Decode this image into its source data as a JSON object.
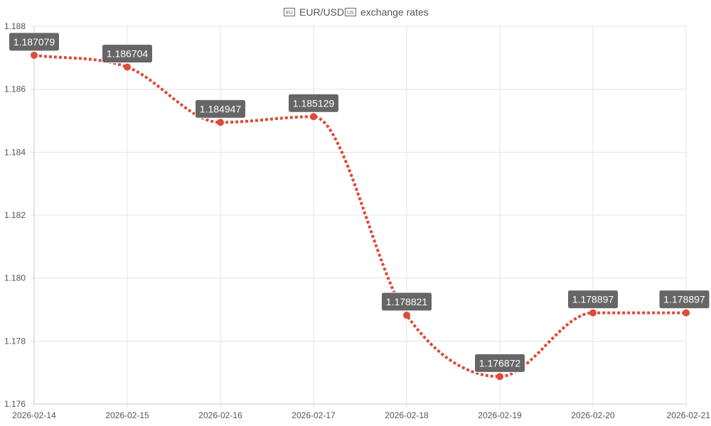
{
  "chart_data": {
    "type": "line",
    "title": "EUR/USD exchange rates",
    "title_icons": [
      "eu-flag-icon",
      "us-flag-icon"
    ],
    "title_parts": [
      "EUR/USD",
      "exchange rates"
    ],
    "categories": [
      "2026-02-14",
      "2026-02-15",
      "2026-02-16",
      "2026-02-17",
      "2026-02-18",
      "2026-02-19",
      "2026-02-20",
      "2026-02-21"
    ],
    "series": [
      {
        "name": "",
        "values": [
          1.187079,
          1.186704,
          1.184947,
          1.185129,
          1.178821,
          1.176872,
          1.178897,
          1.178897
        ],
        "labels": [
          "1.187079",
          "1.186704",
          "1.184947",
          "1.185129",
          "1.178821",
          "1.176872",
          "1.178897",
          "1.178897"
        ],
        "color": "#dd4b39",
        "line_style": "dotted",
        "smooth": true
      }
    ],
    "y_ticks": [
      "1.176",
      "1.178",
      "1.180",
      "1.182",
      "1.184",
      "1.186",
      "1.188"
    ],
    "ylim": [
      1.176,
      1.188
    ],
    "xlabel": "",
    "ylabel": "",
    "grid": true,
    "legend": "none",
    "label_bg_color": "#666666"
  }
}
